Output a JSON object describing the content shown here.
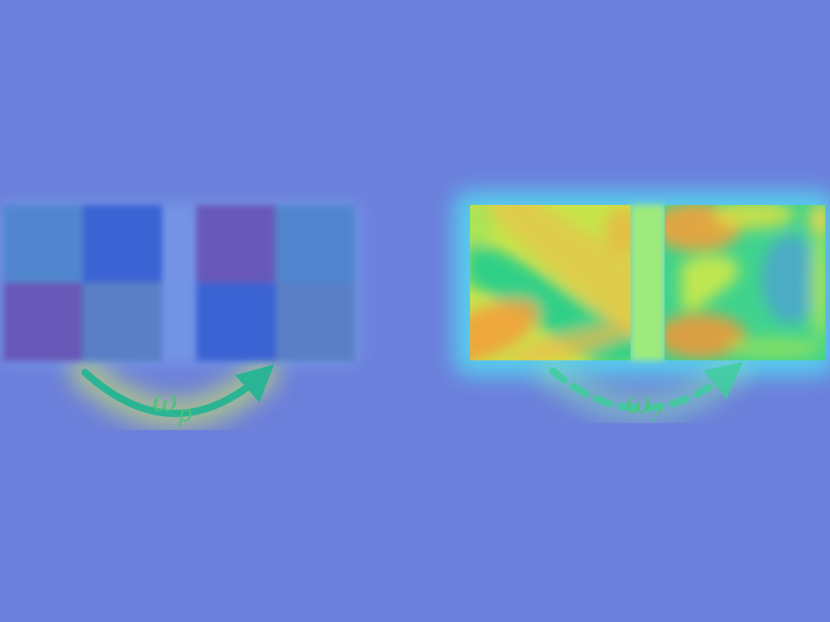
{
  "left_diagram": {
    "arrow_label": "ω",
    "arrow_subscript": "p",
    "arrow_style": "solid"
  },
  "right_diagram": {
    "arrow_label": "ω",
    "arrow_subscript": "?",
    "arrow_style": "dashed"
  },
  "colors": {
    "background": "#6b7fdb",
    "glow": "#54d6f0",
    "arrow": "#1fb592",
    "label": "#4cc37a",
    "cell_blue": "#3b63d3",
    "cell_purple": "#6758b8",
    "cell_steel": "#5186cf",
    "field_orange": "#f2a13a",
    "field_yellow": "#d6ea44",
    "field_green": "#28cf8a"
  }
}
